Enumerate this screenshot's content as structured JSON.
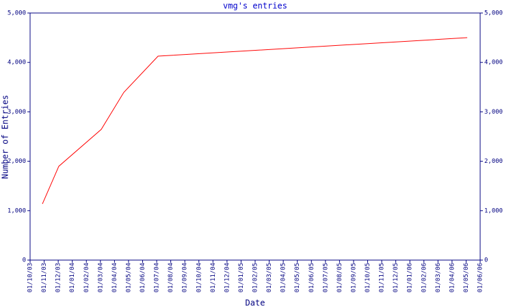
{
  "chart_data": {
    "type": "line",
    "title": "vmg's entries",
    "x_label": "Date",
    "y_label": "Number of Entries",
    "xlim": [
      0,
      32
    ],
    "xticks": [
      {
        "value": 0,
        "label": "01/10/03"
      },
      {
        "value": 1,
        "label": "01/11/03"
      },
      {
        "value": 2,
        "label": "01/12/03"
      },
      {
        "value": 3,
        "label": "01/01/04"
      },
      {
        "value": 4,
        "label": "01/02/04"
      },
      {
        "value": 5,
        "label": "01/03/04"
      },
      {
        "value": 6,
        "label": "01/04/04"
      },
      {
        "value": 7,
        "label": "01/05/04"
      },
      {
        "value": 8,
        "label": "01/06/04"
      },
      {
        "value": 9,
        "label": "01/07/04"
      },
      {
        "value": 10,
        "label": "01/08/04"
      },
      {
        "value": 11,
        "label": "01/09/04"
      },
      {
        "value": 12,
        "label": "01/10/04"
      },
      {
        "value": 13,
        "label": "01/11/04"
      },
      {
        "value": 14,
        "label": "01/12/04"
      },
      {
        "value": 15,
        "label": "01/01/05"
      },
      {
        "value": 16,
        "label": "01/02/05"
      },
      {
        "value": 17,
        "label": "01/03/05"
      },
      {
        "value": 18,
        "label": "01/04/05"
      },
      {
        "value": 19,
        "label": "01/05/05"
      },
      {
        "value": 20,
        "label": "01/06/05"
      },
      {
        "value": 21,
        "label": "01/07/05"
      },
      {
        "value": 22,
        "label": "01/08/05"
      },
      {
        "value": 23,
        "label": "01/09/05"
      },
      {
        "value": 24,
        "label": "01/10/05"
      },
      {
        "value": 25,
        "label": "01/11/05"
      },
      {
        "value": 26,
        "label": "01/12/05"
      },
      {
        "value": 27,
        "label": "01/01/06"
      },
      {
        "value": 28,
        "label": "01/02/06"
      },
      {
        "value": 29,
        "label": "01/03/06"
      },
      {
        "value": 30,
        "label": "01/04/06"
      },
      {
        "value": 31,
        "label": "01/05/06"
      },
      {
        "value": 32,
        "label": "01/06/06"
      }
    ],
    "ylim": [
      0,
      5000
    ],
    "yticks": [
      0,
      {
        "value": 1000,
        "label": "1,000"
      },
      {
        "value": 2000,
        "label": "2,000"
      },
      {
        "value": 3000,
        "label": "3,000"
      },
      {
        "value": 4000,
        "label": "4,000"
      },
      {
        "value": 5000,
        "label": "5,000"
      }
    ],
    "y2lim": [
      0,
      5000
    ],
    "y2ticks": [
      0,
      {
        "value": 1000,
        "label": "1,000"
      },
      {
        "value": 2000,
        "label": "2,000"
      },
      {
        "value": 3000,
        "label": "3,000"
      },
      {
        "value": 4000,
        "label": "4,000"
      },
      {
        "value": 5000,
        "label": "5,000"
      }
    ],
    "x": [
      0.875,
      2.04,
      5.06,
      6.66,
      9.1,
      31.08
    ],
    "series": [
      {
        "color": "#ff0000",
        "values": [
          1136,
          1898,
          2645,
          3393,
          4127,
          4501
        ]
      }
    ],
    "axis_color": "#000080",
    "title_color": "#0000cc"
  }
}
